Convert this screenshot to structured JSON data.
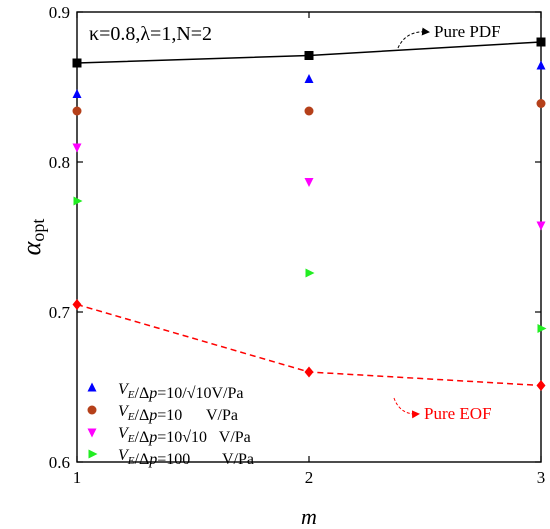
{
  "chart_data": {
    "type": "scatter",
    "xlabel": "m",
    "ylabel": {
      "main": "α",
      "sub": "opt"
    },
    "xlim": [
      1,
      3
    ],
    "ylim": [
      0.6,
      0.9
    ],
    "x_ticks": [
      "1",
      "2",
      "3"
    ],
    "y_ticks": [
      "0.6",
      "0.7",
      "0.8",
      "0.9"
    ],
    "x": [
      1,
      2,
      3
    ],
    "parameter_text": "κ=0.8,λ=1,N=2",
    "grid": false,
    "legend_position": "bottom-left",
    "series": [
      {
        "name": "Pure PDF",
        "marker": "square",
        "color": "#000000",
        "line": "solid",
        "values": [
          0.866,
          0.871,
          0.88
        ],
        "annotation": "Pure PDF",
        "annotation_color": "#000000"
      },
      {
        "name": "Pure EOF",
        "marker": "diamond",
        "color": "#ff0000",
        "line": "dashed",
        "values": [
          0.705,
          0.66,
          0.651
        ],
        "annotation": "Pure EOF",
        "annotation_color": "#ff0000"
      },
      {
        "name": "VE/Δp=10/√10V/Pa",
        "marker": "triangle-up",
        "color": "#0000ff",
        "values": [
          0.845,
          0.855,
          0.864
        ],
        "legend": {
          "a": "V",
          "b": "E",
          "c": "/Δ",
          "d": "p",
          "e": "=10/√10V/Pa"
        }
      },
      {
        "name": "VE/Δp=10 V/Pa",
        "marker": "circle",
        "color": "#b5401a",
        "values": [
          0.834,
          0.834,
          0.839
        ],
        "legend": {
          "a": "V",
          "b": "E",
          "c": "/Δ",
          "d": "p",
          "e": "=10      V/Pa"
        }
      },
      {
        "name": "VE/Δp=10√10 V/Pa",
        "marker": "triangle-down",
        "color": "#ff00ff",
        "values": [
          0.81,
          0.787,
          0.758
        ],
        "legend": {
          "a": "V",
          "b": "E",
          "c": "/Δ",
          "d": "p",
          "e": "=10√10   V/Pa"
        }
      },
      {
        "name": "VE/Δp=100 V/Pa",
        "marker": "triangle-right",
        "color": "#22ee22",
        "values": [
          0.774,
          0.726,
          0.689
        ],
        "legend": {
          "a": "V",
          "b": "E",
          "c": "/Δ",
          "d": "p",
          "e": "=100        V/Pa"
        }
      }
    ]
  }
}
